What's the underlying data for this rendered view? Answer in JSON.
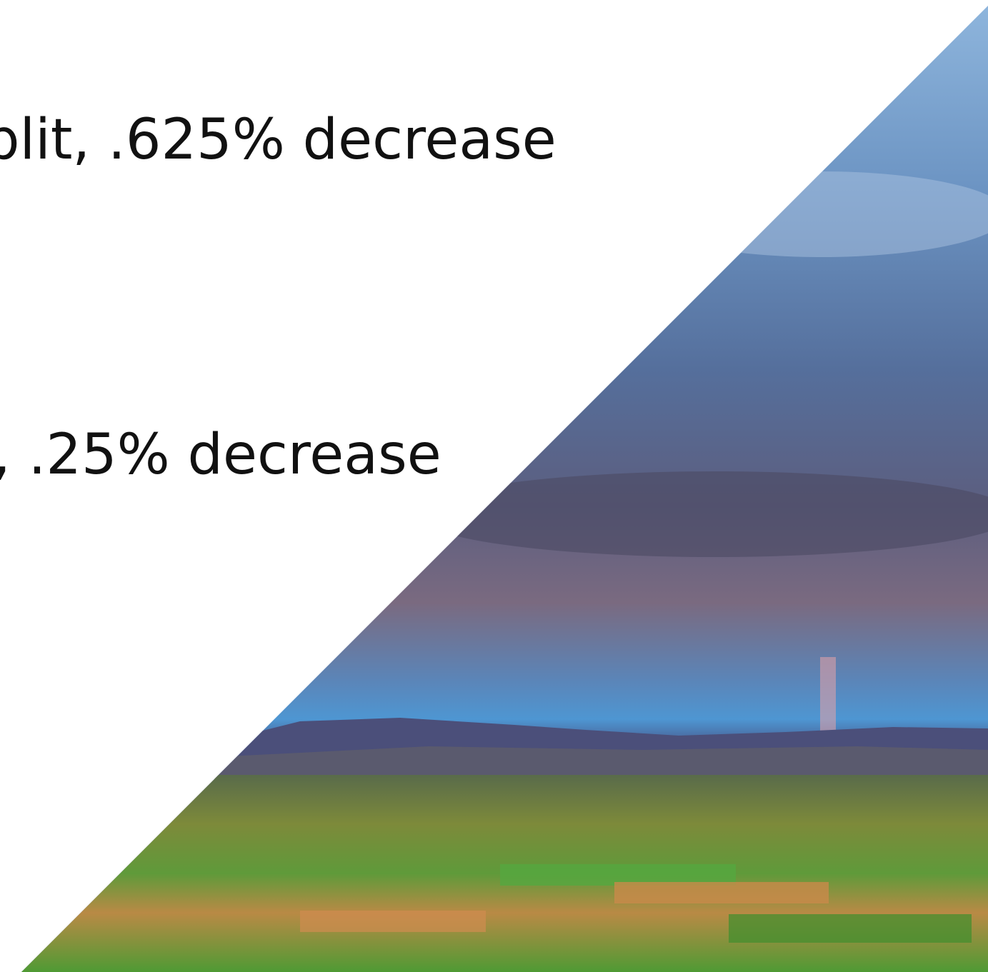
{
  "texts": {
    "line_1": "plit, .625% decrease",
    "line_2": ", .25% decrease"
  }
}
